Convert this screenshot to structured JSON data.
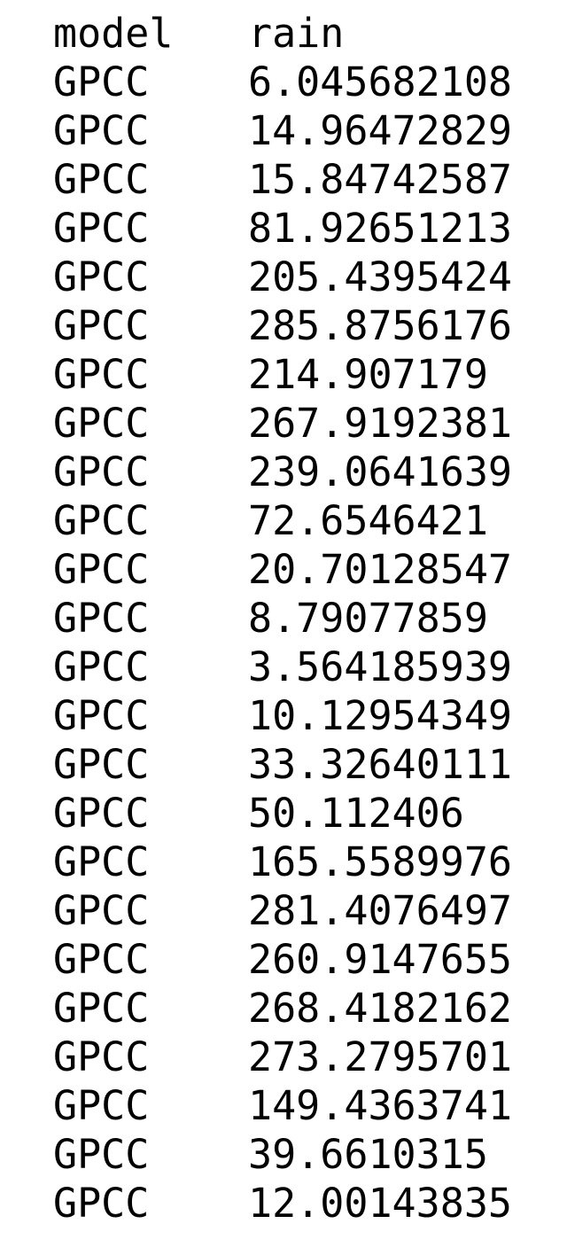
{
  "table": {
    "headers": [
      "model",
      "rain"
    ],
    "rows": [
      [
        "GPCC",
        "6.045682108"
      ],
      [
        "GPCC",
        "14.96472829"
      ],
      [
        "GPCC",
        "15.84742587"
      ],
      [
        "GPCC",
        "81.92651213"
      ],
      [
        "GPCC",
        "205.4395424"
      ],
      [
        "GPCC",
        "285.8756176"
      ],
      [
        "GPCC",
        "214.907179"
      ],
      [
        "GPCC",
        "267.9192381"
      ],
      [
        "GPCC",
        "239.0641639"
      ],
      [
        "GPCC",
        "72.6546421"
      ],
      [
        "GPCC",
        "20.70128547"
      ],
      [
        "GPCC",
        "8.79077859"
      ],
      [
        "GPCC",
        "3.564185939"
      ],
      [
        "GPCC",
        "10.12954349"
      ],
      [
        "GPCC",
        "33.32640111"
      ],
      [
        "GPCC",
        "50.112406"
      ],
      [
        "GPCC",
        "165.5589976"
      ],
      [
        "GPCC",
        "281.4076497"
      ],
      [
        "GPCC",
        "260.9147655"
      ],
      [
        "GPCC",
        "268.4182162"
      ],
      [
        "GPCC",
        "273.2795701"
      ],
      [
        "GPCC",
        "149.4363741"
      ],
      [
        "GPCC",
        "39.6610315"
      ],
      [
        "GPCC",
        "12.00143835"
      ]
    ]
  }
}
